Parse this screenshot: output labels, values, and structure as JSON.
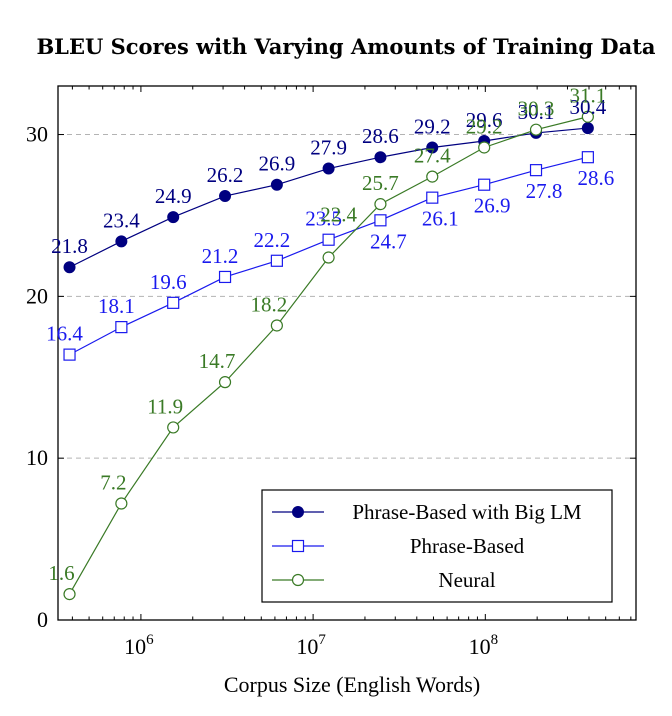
{
  "chart_data": {
    "type": "line",
    "title": "BLEU Scores with Varying Amounts of Training Data",
    "xlabel": "Corpus Size (English Words)",
    "ylabel": "",
    "x_scale": "log",
    "x_tick_labels": [
      {
        "value": 1000000,
        "base": "10",
        "exp": "6"
      },
      {
        "value": 10000000,
        "base": "10",
        "exp": "7"
      },
      {
        "value": 100000000,
        "base": "10",
        "exp": "8"
      }
    ],
    "y_ticks": [
      0,
      10,
      20,
      30
    ],
    "xlim": [
      330000,
      750000000
    ],
    "ylim": [
      0,
      33
    ],
    "grid": "horizontal dashed",
    "legend_position": "bottom-right",
    "x": [
      385000,
      770000,
      1540000,
      3080000,
      6160000,
      12300000,
      24600000,
      49200000,
      98500000,
      197000000,
      394000000
    ],
    "series": [
      {
        "name": "Phrase-Based with Big LM",
        "color": "#000080",
        "marker": "filled-circle",
        "values": [
          21.8,
          23.4,
          24.9,
          26.2,
          26.9,
          27.9,
          28.6,
          29.2,
          29.6,
          30.1,
          30.4
        ],
        "labels": [
          "21.8",
          "23.4",
          "24.9",
          "26.2",
          "26.9",
          "27.9",
          "28.6",
          "29.2",
          "29.6",
          "30.1",
          "30.4"
        ]
      },
      {
        "name": "Phrase-Based",
        "color": "#1a1aee",
        "marker": "open-square",
        "values": [
          16.4,
          18.1,
          19.6,
          21.2,
          22.2,
          23.5,
          24.7,
          26.1,
          26.9,
          27.8,
          28.6
        ],
        "labels": [
          "16.4",
          "18.1",
          "19.6",
          "21.2",
          "22.2",
          "23.5",
          "24.7",
          "26.1",
          "26.9",
          "27.8",
          "28.6"
        ]
      },
      {
        "name": "Neural",
        "color": "#3a7a26",
        "marker": "open-circle",
        "values": [
          1.6,
          7.2,
          11.9,
          14.7,
          18.2,
          22.4,
          25.7,
          27.4,
          29.2,
          30.3,
          31.1
        ],
        "labels": [
          "1.6",
          "7.2",
          "11.9",
          "14.7",
          "18.2",
          "22.4",
          "25.7",
          "27.4",
          "29.2",
          "30.3",
          "31.1"
        ]
      }
    ]
  }
}
